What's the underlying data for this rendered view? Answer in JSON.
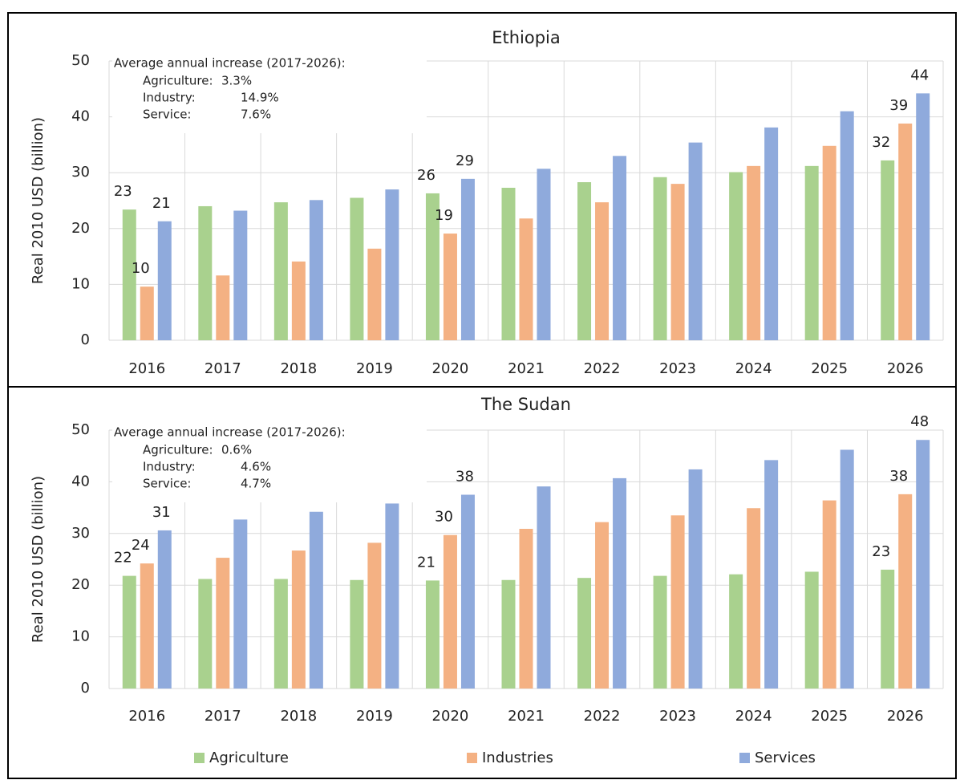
{
  "chart_data": [
    {
      "type": "bar",
      "title": "Ethiopia",
      "y_label": "Real 2010 USD (billion)",
      "categories": [
        "2016",
        "2017",
        "2018",
        "2019",
        "2020",
        "2021",
        "2022",
        "2023",
        "2024",
        "2025",
        "2026"
      ],
      "ylim": [
        0,
        50
      ],
      "yticks": [
        0,
        10,
        20,
        30,
        40,
        50
      ],
      "grid": true,
      "legend": "bottom",
      "annotation": {
        "heading": "Average annual increase (2017-2026):",
        "items": [
          {
            "label": "Agriculture:",
            "value": "3.3%"
          },
          {
            "label": "Industry:",
            "value": "14.9%"
          },
          {
            "label": "Service:",
            "value": "7.6%"
          }
        ]
      },
      "series": [
        {
          "name": "Agriculture",
          "color": "#a9d18e",
          "values": [
            23.4,
            24.0,
            24.7,
            25.5,
            26.3,
            27.3,
            28.3,
            29.2,
            30.1,
            31.2,
            32.2
          ],
          "value_labels": [
            "23",
            null,
            null,
            null,
            "26",
            null,
            null,
            null,
            null,
            null,
            "32"
          ]
        },
        {
          "name": "Industries",
          "color": "#f4b183",
          "values": [
            9.6,
            11.6,
            14.1,
            16.4,
            19.1,
            21.8,
            24.7,
            28.0,
            31.2,
            34.8,
            38.8
          ],
          "value_labels": [
            "10",
            null,
            null,
            null,
            "19",
            null,
            null,
            null,
            null,
            null,
            "39"
          ]
        },
        {
          "name": "Services",
          "color": "#8faadc",
          "values": [
            21.3,
            23.2,
            25.1,
            27.0,
            28.9,
            30.7,
            33.0,
            35.4,
            38.1,
            41.0,
            44.2
          ],
          "value_labels": [
            "21",
            null,
            null,
            null,
            "29",
            null,
            null,
            null,
            null,
            null,
            "44"
          ]
        }
      ]
    },
    {
      "type": "bar",
      "title": "The Sudan",
      "y_label": "Real 2010 USD (billion)",
      "categories": [
        "2016",
        "2017",
        "2018",
        "2019",
        "2020",
        "2021",
        "2022",
        "2023",
        "2024",
        "2025",
        "2026"
      ],
      "ylim": [
        0,
        50
      ],
      "yticks": [
        0,
        10,
        20,
        30,
        40,
        50
      ],
      "grid": true,
      "annotation": {
        "heading": "Average annual increase (2017-2026):",
        "items": [
          {
            "label": "Agriculture:",
            "value": "0.6%"
          },
          {
            "label": "Industry:",
            "value": "4.6%"
          },
          {
            "label": "Service:",
            "value": "4.7%"
          }
        ]
      },
      "series": [
        {
          "name": "Agriculture",
          "color": "#a9d18e",
          "values": [
            21.8,
            21.2,
            21.2,
            21.0,
            20.9,
            21.0,
            21.4,
            21.8,
            22.1,
            22.6,
            23.0
          ],
          "value_labels": [
            "22",
            null,
            null,
            null,
            "21",
            null,
            null,
            null,
            null,
            null,
            "23"
          ]
        },
        {
          "name": "Industries",
          "color": "#f4b183",
          "values": [
            24.2,
            25.3,
            26.7,
            28.2,
            29.7,
            30.9,
            32.2,
            33.5,
            34.9,
            36.4,
            37.6
          ],
          "value_labels": [
            "24",
            null,
            null,
            null,
            "30",
            null,
            null,
            null,
            null,
            null,
            "38"
          ]
        },
        {
          "name": "Services",
          "color": "#8faadc",
          "values": [
            30.6,
            32.7,
            34.2,
            35.8,
            37.5,
            39.1,
            40.7,
            42.4,
            44.2,
            46.2,
            48.1
          ],
          "value_labels": [
            "31",
            null,
            null,
            null,
            "38",
            null,
            null,
            null,
            null,
            null,
            "48"
          ]
        }
      ]
    }
  ]
}
